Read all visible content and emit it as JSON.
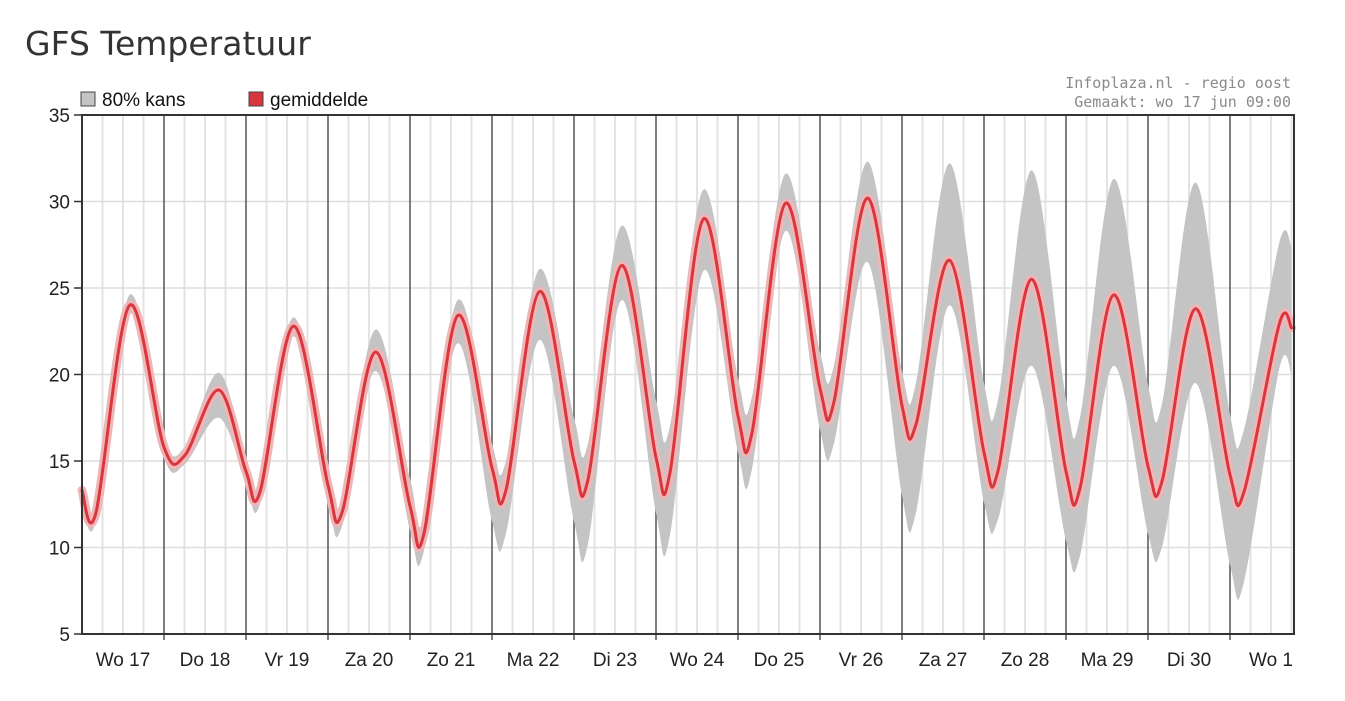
{
  "title": "GFS Temperatuur",
  "credits": [
    "Infoplaza.nl - regio oost",
    "Gemaakt: wo 17 jun 09:00"
  ],
  "legend": {
    "band_label": "80% kans",
    "mean_label": "gemiddelde",
    "band_color": "#c4c4c4",
    "mean_color": "#d9363e"
  },
  "chart_data": {
    "type": "line",
    "title": "",
    "xlabel": "",
    "ylabel": "",
    "ylim": [
      5,
      35
    ],
    "yticks": [
      5,
      10,
      15,
      20,
      25,
      30,
      35
    ],
    "grid": true,
    "legend_position": "top-left",
    "x_unit": "day-offset from Wo 17 00:00",
    "xlim": [
      0,
      14.75
    ],
    "categories": [
      "Wo 17",
      "Do 18",
      "Vr 19",
      "Za 20",
      "Zo 21",
      "Ma 22",
      "Di 23",
      "Wo 24",
      "Do 25",
      "Vr 26",
      "Za 27",
      "Zo 28",
      "Ma 29",
      "Di 30",
      "Wo 1"
    ],
    "x": [
      0,
      0.17,
      0.58,
      1.0,
      1.25,
      1.67,
      2.0,
      2.17,
      2.58,
      3.0,
      3.17,
      3.58,
      4.0,
      4.17,
      4.58,
      5.0,
      5.17,
      5.58,
      6.0,
      6.17,
      6.58,
      7.0,
      7.17,
      7.58,
      8.0,
      8.17,
      8.58,
      9.0,
      9.17,
      9.58,
      10.0,
      10.17,
      10.58,
      11.0,
      11.17,
      11.58,
      12.0,
      12.17,
      12.58,
      13.0,
      13.17,
      13.58,
      14.0,
      14.17,
      14.6,
      14.75
    ],
    "series": [
      {
        "name": "gemiddelde",
        "values": [
          13.3,
          12.0,
          24.0,
          15.8,
          15.3,
          19.1,
          14.4,
          13.2,
          22.8,
          13.6,
          12.0,
          21.3,
          12.4,
          10.8,
          23.4,
          14.6,
          13.3,
          24.8,
          15.0,
          13.9,
          26.3,
          15.2,
          14.3,
          29.0,
          17.6,
          16.6,
          29.9,
          19.2,
          18.4,
          30.2,
          18.2,
          17.1,
          26.6,
          15.5,
          14.4,
          25.5,
          14.4,
          13.4,
          24.6,
          14.7,
          13.8,
          23.8,
          14.2,
          13.2,
          22.9,
          22.7
        ]
      },
      {
        "name": "80% kans",
        "lower": [
          12.8,
          11.5,
          23.5,
          15.2,
          14.8,
          17.5,
          13.8,
          12.5,
          22.2,
          12.6,
          11.2,
          20.2,
          11.0,
          9.8,
          21.8,
          11.5,
          10.8,
          22.0,
          11.5,
          10.2,
          24.3,
          12.0,
          10.7,
          26.0,
          15.5,
          14.5,
          28.3,
          16.8,
          16.0,
          26.5,
          13.0,
          12.0,
          24.0,
          12.6,
          11.6,
          20.5,
          10.4,
          9.5,
          20.5,
          10.8,
          10.0,
          19.5,
          9.0,
          8.0,
          20.3,
          20.0
        ],
        "upper": [
          13.8,
          12.4,
          24.6,
          16.3,
          15.8,
          20.1,
          15.0,
          13.8,
          23.3,
          14.3,
          12.8,
          22.6,
          14.0,
          11.8,
          24.3,
          16.0,
          15.0,
          26.1,
          17.5,
          16.0,
          28.6,
          18.5,
          17.0,
          30.7,
          19.8,
          18.7,
          31.6,
          21.3,
          20.5,
          32.3,
          20.2,
          19.5,
          32.2,
          19.5,
          18.5,
          31.8,
          18.6,
          17.5,
          31.3,
          19.4,
          18.3,
          31.1,
          17.7,
          16.8,
          27.6,
          27.4
        ]
      }
    ]
  }
}
